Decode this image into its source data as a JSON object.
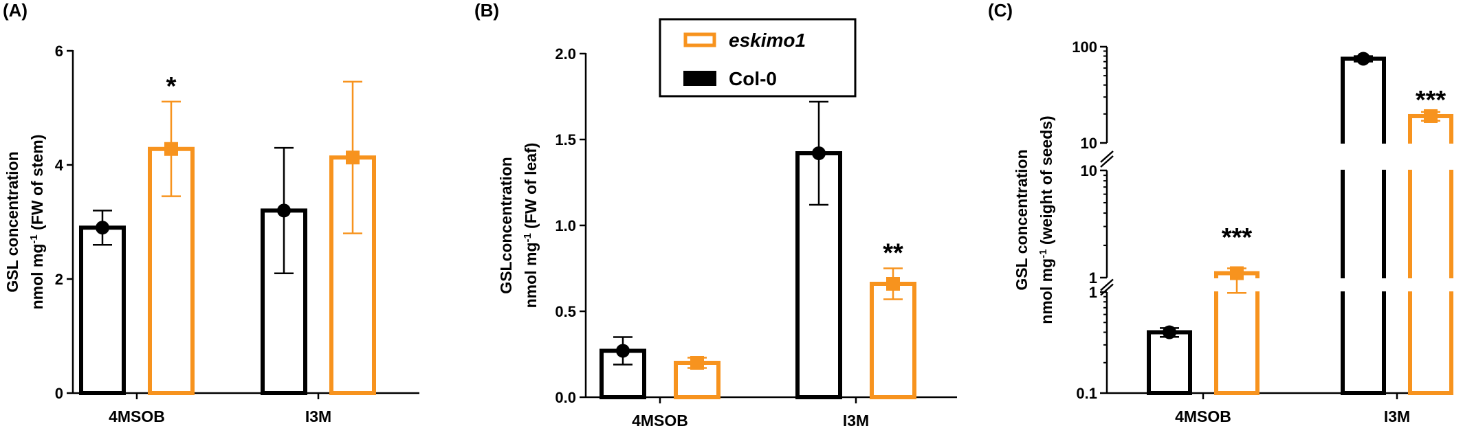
{
  "colors": {
    "col0": "#000000",
    "eskimo1": "#f7931e"
  },
  "legend": {
    "items": [
      {
        "label": "eskimo1",
        "color": "#f7931e",
        "italic": true
      },
      {
        "label": "Col-0",
        "color": "#000000",
        "italic": false
      }
    ]
  },
  "chart_data": [
    {
      "panel": "(A)",
      "type": "bar",
      "categories": [
        "4MSOB",
        "I3M"
      ],
      "series": [
        {
          "name": "Col-0",
          "values": [
            2.9,
            3.2
          ],
          "error": [
            0.3,
            1.1
          ]
        },
        {
          "name": "eskimo1",
          "values": [
            4.28,
            4.13
          ],
          "error": [
            0.83,
            1.33
          ]
        }
      ],
      "ylabel": [
        "GSL concentration",
        "nmol mg-1 (FW of stem)"
      ],
      "ylim": [
        0,
        6
      ],
      "yticks": [
        "0",
        "2",
        "4",
        "6"
      ],
      "significance": [
        {
          "category": "4MSOB",
          "series": "eskimo1",
          "label": "*"
        }
      ]
    },
    {
      "panel": "(B)",
      "type": "bar",
      "categories": [
        "4MSOB",
        "I3M"
      ],
      "series": [
        {
          "name": "Col-0",
          "values": [
            0.27,
            1.42
          ],
          "error": [
            0.08,
            0.3
          ]
        },
        {
          "name": "eskimo1",
          "values": [
            0.2,
            0.66
          ],
          "error": [
            0.03,
            0.09
          ]
        }
      ],
      "ylabel": [
        "GSLconcentration",
        "nmol mg-1 (FW of leaf)"
      ],
      "ylim": [
        0,
        2.0
      ],
      "yticks": [
        "0.0",
        "0.5",
        "1.0",
        "1.5",
        "2.0"
      ],
      "significance": [
        {
          "category": "I3M",
          "series": "eskimo1",
          "label": "**"
        }
      ]
    },
    {
      "panel": "(C)",
      "type": "bar",
      "scale": "log (segmented, broken axis)",
      "categories": [
        "4MSOB",
        "I3M"
      ],
      "series": [
        {
          "name": "Col-0",
          "values": [
            0.4,
            75
          ],
          "error": [
            0.04,
            5
          ]
        },
        {
          "name": "eskimo1",
          "values": [
            1.1,
            19
          ],
          "error": [
            0.12,
            2
          ]
        }
      ],
      "ylabel": [
        "GSL concentration",
        "nmol mg-1 (weight of seeds)"
      ],
      "ylim": [
        0.1,
        100
      ],
      "yticks": [
        "0.1",
        "1",
        "1",
        "10",
        "10",
        "100"
      ],
      "significance": [
        {
          "category": "4MSOB",
          "series": "eskimo1",
          "label": "***"
        },
        {
          "category": "I3M",
          "series": "eskimo1",
          "label": "***"
        }
      ]
    }
  ]
}
